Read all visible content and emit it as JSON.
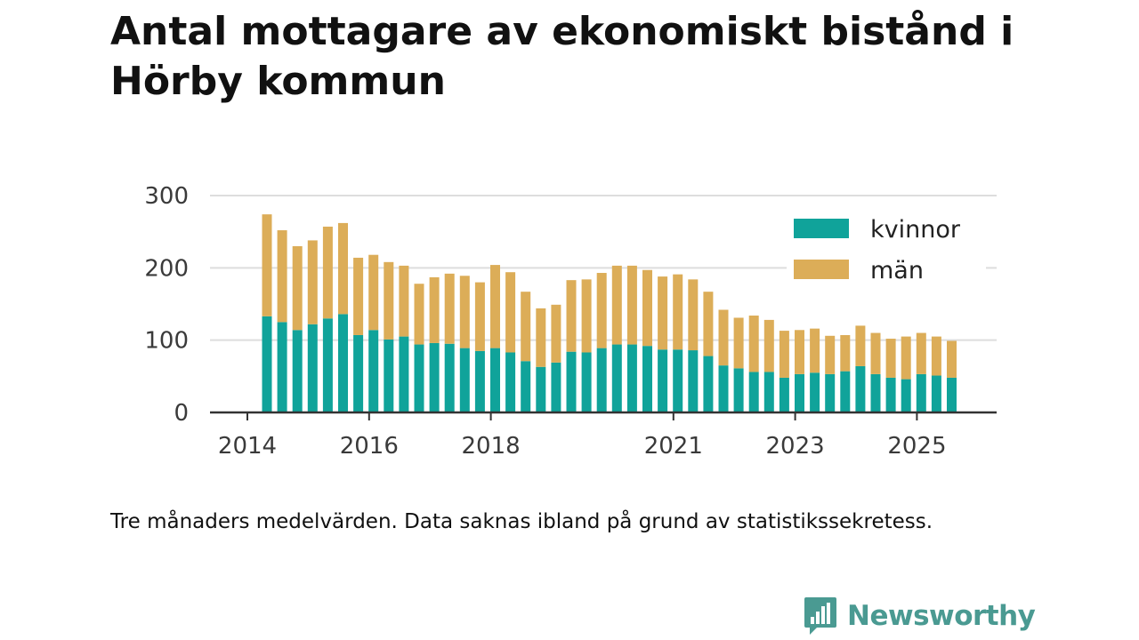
{
  "title": "Antal mottagare av ekonomiskt bistånd i Hörby kommun",
  "caption": "Tre månaders medelvärden. Data saknas ibland på grund av statistikssekretess.",
  "brand": {
    "name": "Newsworthy"
  },
  "colors": {
    "kvinnor": "#10a39a",
    "man": "#dcad58",
    "grid": "#dddddd",
    "axis": "#333333",
    "brand": "#4a9a92"
  },
  "chart_data": {
    "type": "bar",
    "stacked": true,
    "title": "Antal mottagare av ekonomiskt bistånd i Hörby kommun",
    "xlabel": "",
    "ylabel": "",
    "ylim": [
      0,
      300
    ],
    "yticks": [
      "0",
      "100",
      "200",
      "300"
    ],
    "xticks": [
      {
        "label": "2014",
        "index": 0
      },
      {
        "label": "2016",
        "index": 8
      },
      {
        "label": "2018",
        "index": 16
      },
      {
        "label": "2021",
        "index": 28
      },
      {
        "label": "2023",
        "index": 36
      },
      {
        "label": "2025",
        "index": 44
      }
    ],
    "grid": true,
    "legend": "top-right",
    "series": [
      {
        "name": "kvinnor",
        "values": [
          133,
          125,
          114,
          122,
          130,
          136,
          107,
          114,
          101,
          105,
          94,
          96,
          95,
          89,
          85,
          89,
          83,
          71,
          63,
          69,
          84,
          83,
          89,
          94,
          94,
          92,
          87,
          87,
          86,
          78,
          65,
          61,
          56,
          56,
          48,
          53,
          55,
          53,
          57,
          64,
          53,
          48,
          46,
          53,
          51,
          48
        ]
      },
      {
        "name": "män",
        "values": [
          141,
          127,
          116,
          116,
          127,
          126,
          107,
          104,
          107,
          98,
          84,
          91,
          97,
          100,
          95,
          115,
          111,
          96,
          81,
          80,
          99,
          101,
          104,
          109,
          109,
          105,
          101,
          104,
          98,
          89,
          77,
          70,
          78,
          72,
          65,
          61,
          61,
          53,
          50,
          56,
          57,
          54,
          59,
          57,
          54,
          51
        ]
      }
    ]
  }
}
